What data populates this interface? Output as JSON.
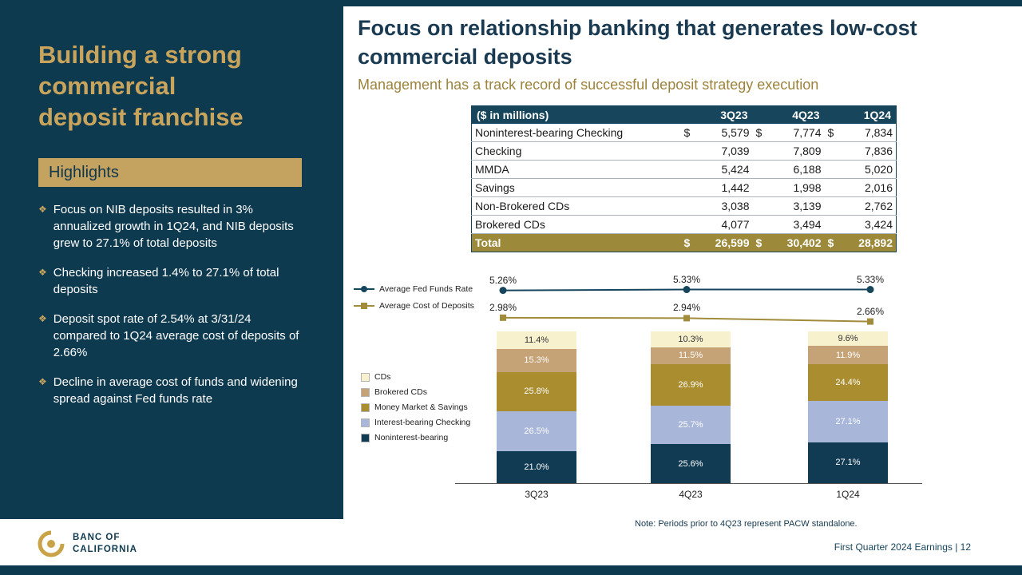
{
  "sidebar": {
    "title": "Building a strong\ncommercial\ndeposit franchise",
    "highlights_label": "Highlights",
    "bullets": [
      "Focus on NIB deposits resulted in 3% annualized growth in 1Q24, and NIB deposits grew to 27.1% of total deposits",
      "Checking increased 1.4% to 27.1% of total deposits",
      "Deposit spot rate of 2.54% at 3/31/24 compared to 1Q24 average cost of deposits of 2.66%",
      "Decline in average cost of funds and widening spread against Fed funds rate"
    ]
  },
  "main": {
    "title": "Focus on relationship banking that generates low-cost commercial deposits",
    "subtitle": "Management has a track record of successful deposit strategy execution",
    "note": "Note: Periods prior to 4Q23 represent PACW standalone."
  },
  "table": {
    "header": [
      "($ in millions)",
      "3Q23",
      "4Q23",
      "1Q24"
    ],
    "rows": [
      {
        "label": "Noninterest-bearing Checking",
        "dollar": true,
        "values": [
          "5,579",
          "7,774",
          "7,834"
        ]
      },
      {
        "label": "Checking",
        "dollar": false,
        "values": [
          "7,039",
          "7,809",
          "7,836"
        ]
      },
      {
        "label": "MMDA",
        "dollar": false,
        "values": [
          "5,424",
          "6,188",
          "5,020"
        ]
      },
      {
        "label": "Savings",
        "dollar": false,
        "values": [
          "1,442",
          "1,998",
          "2,016"
        ]
      },
      {
        "label": "Non-Brokered CDs",
        "dollar": false,
        "values": [
          "3,038",
          "3,139",
          "2,762"
        ]
      },
      {
        "label": "Brokered CDs",
        "dollar": false,
        "values": [
          "4,077",
          "3,494",
          "3,424"
        ]
      }
    ],
    "total": {
      "label": "Total",
      "dollar": true,
      "values": [
        "26,599",
        "30,402",
        "28,892"
      ]
    }
  },
  "chart_data": [
    {
      "type": "line",
      "categories": [
        "3Q23",
        "4Q23",
        "1Q24"
      ],
      "legend_position": "left",
      "grid": false,
      "ylim": [
        2.5,
        5.5
      ],
      "series": [
        {
          "name": "Average Fed Funds Rate",
          "values": [
            5.26,
            5.33,
            5.33
          ],
          "labels": [
            "5.26%",
            "5.33%",
            "5.33%"
          ],
          "color": "#17465c",
          "marker": "circle"
        },
        {
          "name": "Average Cost of Deposits",
          "values": [
            2.98,
            2.94,
            2.66
          ],
          "labels": [
            "2.98%",
            "2.94%",
            "2.66%"
          ],
          "color": "#a08c3a",
          "marker": "square"
        }
      ]
    },
    {
      "type": "bar",
      "stacked": true,
      "percent": true,
      "categories": [
        "3Q23",
        "4Q23",
        "1Q24"
      ],
      "legend_position": "left",
      "ylim": [
        0,
        100
      ],
      "series": [
        {
          "name": "CDs",
          "values": [
            11.4,
            10.3,
            9.6
          ],
          "color": "#f7f1ce",
          "text_color": "#333333"
        },
        {
          "name": "Brokered CDs",
          "values": [
            15.3,
            11.5,
            11.9
          ],
          "color": "#c6a376",
          "text_color": "#ffffff"
        },
        {
          "name": "Money Market & Savings",
          "values": [
            25.8,
            26.9,
            24.4
          ],
          "color": "#a98d2f",
          "text_color": "#ffffff"
        },
        {
          "name": "Interest-bearing Checking",
          "values": [
            26.5,
            25.7,
            27.1
          ],
          "color": "#a7b6d9",
          "text_color": "#ffffff"
        },
        {
          "name": "Noninterest-bearing",
          "values": [
            21.0,
            25.6,
            27.1
          ],
          "color": "#113b52",
          "text_color": "#ffffff"
        }
      ]
    }
  ],
  "footer": {
    "logo_line1": "BANC OF",
    "logo_line2": "CALIFORNIA",
    "page_info": "First Quarter 2024 Earnings |  12"
  },
  "colors": {
    "sidebar_navy": "#0e3a50",
    "accent_gold": "#c9a45c",
    "table_header": "#17465c",
    "total_row_gold": "#9c8939"
  }
}
